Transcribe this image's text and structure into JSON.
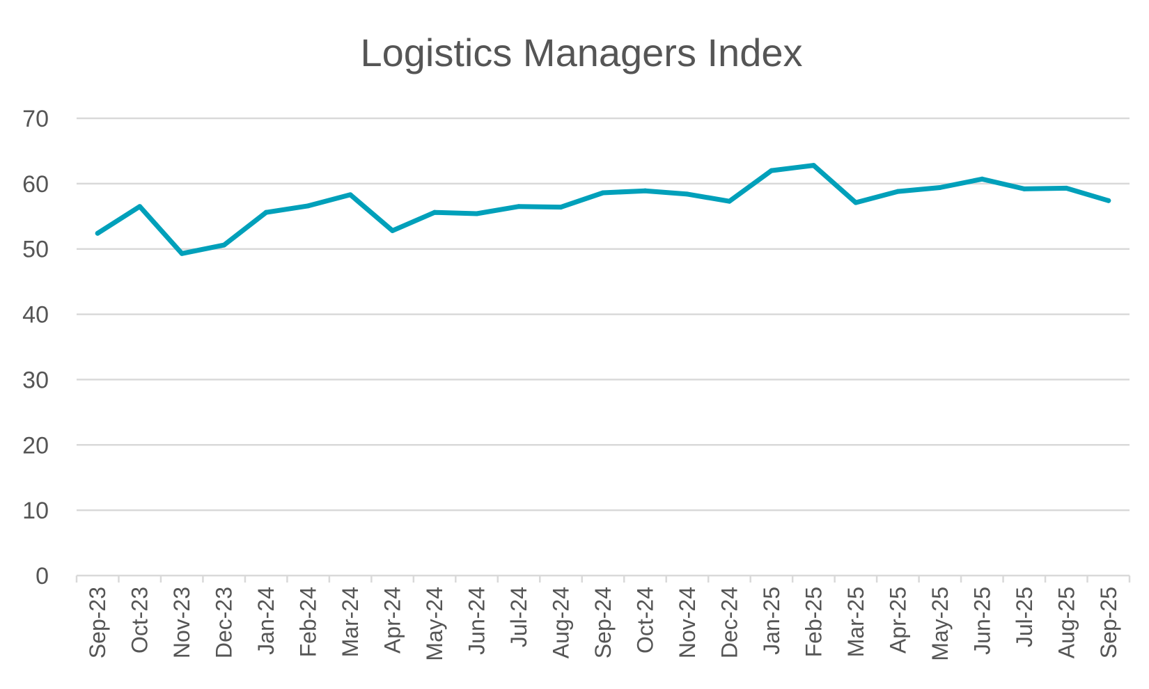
{
  "chart_data": {
    "type": "line",
    "title": "Logistics Managers Index",
    "xlabel": "",
    "ylabel": "",
    "ylim": [
      0,
      70
    ],
    "yticks": [
      0,
      10,
      20,
      30,
      40,
      50,
      60,
      70
    ],
    "grid": true,
    "legend": "none",
    "categories": [
      "Sep-23",
      "Oct-23",
      "Nov-23",
      "Dec-23",
      "Jan-24",
      "Feb-24",
      "Mar-24",
      "Apr-24",
      "May-24",
      "Jun-24",
      "Jul-24",
      "Aug-24",
      "Sep-24",
      "Oct-24",
      "Nov-24",
      "Dec-24",
      "Jan-25",
      "Feb-25",
      "Mar-25",
      "Apr-25",
      "May-25",
      "Jun-25",
      "Jul-25",
      "Aug-25",
      "Sep-25"
    ],
    "series": [
      {
        "color": "#00a0ba",
        "values": [
          52.4,
          56.5,
          49.3,
          50.6,
          55.6,
          56.6,
          58.3,
          52.8,
          55.6,
          55.4,
          56.5,
          56.4,
          58.6,
          58.9,
          58.4,
          57.3,
          62.0,
          62.8,
          57.1,
          58.8,
          59.4,
          60.7,
          59.2,
          59.3,
          57.4
        ]
      }
    ]
  }
}
